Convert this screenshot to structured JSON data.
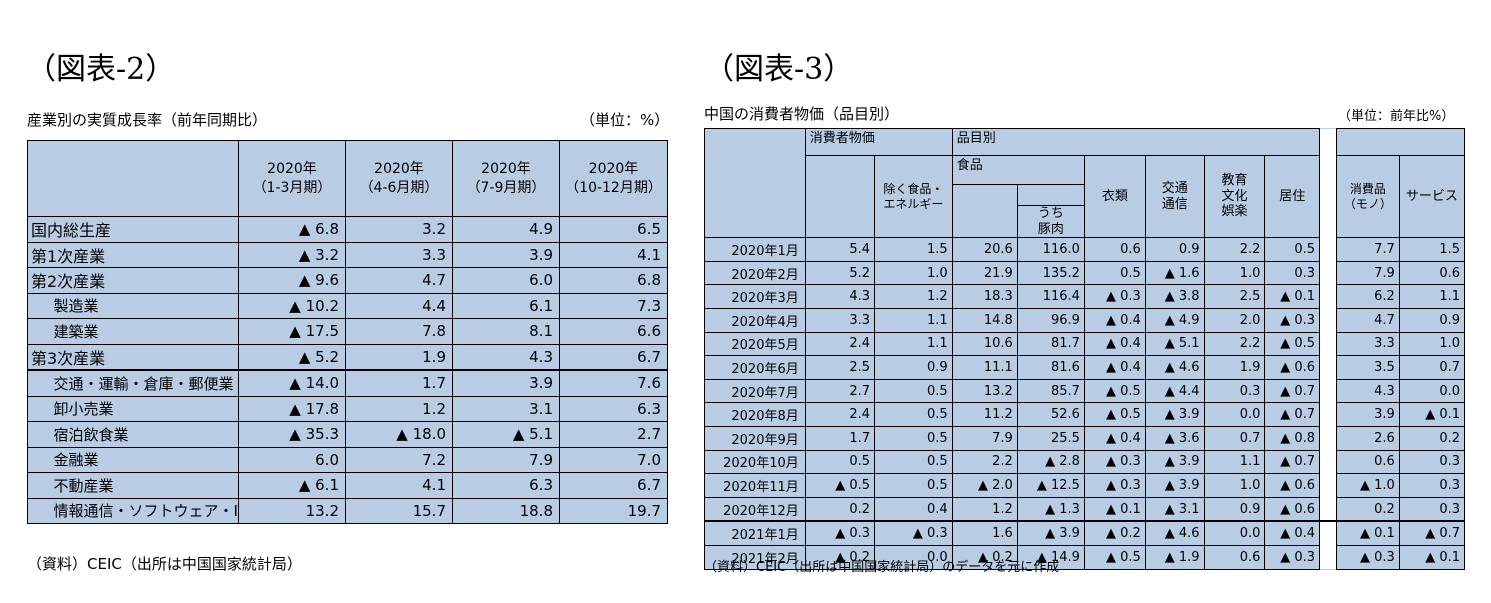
{
  "fig2": {
    "title": "（図表-2）",
    "subtitle": "産業別の実質成長率（前年同期比）",
    "unit": "（単位：%）",
    "columns": [
      "2020年\n（1-3月期）",
      "2020年\n（4-6月期）",
      "2020年\n（7-9月期）",
      "2020年\n（10-12月期）"
    ],
    "rows": [
      {
        "label": "国内総生産",
        "values": [
          "▲ 6.8",
          "3.2",
          "4.9",
          "6.5"
        ]
      },
      {
        "label": "第1次産業",
        "values": [
          "▲ 3.2",
          "3.3",
          "3.9",
          "4.1"
        ]
      },
      {
        "label": "第2次産業",
        "values": [
          "▲ 9.6",
          "4.7",
          "6.0",
          "6.8"
        ]
      },
      {
        "label": "製造業",
        "values": [
          "▲ 10.2",
          "4.4",
          "6.1",
          "7.3"
        ]
      },
      {
        "label": "建築業",
        "values": [
          "▲ 17.5",
          "7.8",
          "8.1",
          "6.6"
        ]
      },
      {
        "label": "第3次産業",
        "values": [
          "▲ 5.2",
          "1.9",
          "4.3",
          "6.7"
        ]
      },
      {
        "label": "交通・運輸・倉庫・郵便業",
        "values": [
          "▲ 14.0",
          "1.7",
          "3.9",
          "7.6"
        ]
      },
      {
        "label": "卸小売業",
        "values": [
          "▲ 17.8",
          "1.2",
          "3.1",
          "6.3"
        ]
      },
      {
        "label": "宿泊飲食業",
        "values": [
          "▲ 35.3",
          "▲ 18.0",
          "▲ 5.1",
          "2.7"
        ]
      },
      {
        "label": "金融業",
        "values": [
          "6.0",
          "7.2",
          "7.9",
          "7.0"
        ]
      },
      {
        "label": "不動産業",
        "values": [
          "▲ 6.1",
          "4.1",
          "6.3",
          "6.7"
        ]
      },
      {
        "label": "情報通信・ソフトウェア・IT",
        "values": [
          "13.2",
          "15.7",
          "18.8",
          "19.7"
        ]
      }
    ],
    "source": "（資料）CEIC（出所は中国国家統計局）"
  },
  "fig3": {
    "title": "（図表-3）",
    "subtitle": "中国の消費者物価（品目別）",
    "unit": "（単位：前年比%）",
    "headers": {
      "cpi": "消費者物価",
      "items": "品目別",
      "ex_food_energy": "除く食品・\nエネルギー",
      "food": "食品",
      "pork": "うち\n豚肉",
      "clothing": "衣類",
      "transport": "交通\n通信",
      "education": "教育\n文化\n娯楽",
      "housing": "居住",
      "goods": "消費品\n（モノ）",
      "services": "サービス"
    },
    "rows": [
      {
        "month": "2020年1月",
        "values": [
          "5.4",
          "1.5",
          "20.6",
          "116.0",
          "0.6",
          "0.9",
          "2.2",
          "0.5",
          "7.7",
          "1.5"
        ]
      },
      {
        "month": "2020年2月",
        "values": [
          "5.2",
          "1.0",
          "21.9",
          "135.2",
          "0.5",
          "▲ 1.6",
          "1.0",
          "0.3",
          "7.9",
          "0.6"
        ]
      },
      {
        "month": "2020年3月",
        "values": [
          "4.3",
          "1.2",
          "18.3",
          "116.4",
          "▲ 0.3",
          "▲ 3.8",
          "2.5",
          "▲ 0.1",
          "6.2",
          "1.1"
        ]
      },
      {
        "month": "2020年4月",
        "values": [
          "3.3",
          "1.1",
          "14.8",
          "96.9",
          "▲ 0.4",
          "▲ 4.9",
          "2.0",
          "▲ 0.3",
          "4.7",
          "0.9"
        ]
      },
      {
        "month": "2020年5月",
        "values": [
          "2.4",
          "1.1",
          "10.6",
          "81.7",
          "▲ 0.4",
          "▲ 5.1",
          "2.2",
          "▲ 0.5",
          "3.3",
          "1.0"
        ]
      },
      {
        "month": "2020年6月",
        "values": [
          "2.5",
          "0.9",
          "11.1",
          "81.6",
          "▲ 0.4",
          "▲ 4.6",
          "1.9",
          "▲ 0.6",
          "3.5",
          "0.7"
        ]
      },
      {
        "month": "2020年7月",
        "values": [
          "2.7",
          "0.5",
          "13.2",
          "85.7",
          "▲ 0.5",
          "▲ 4.4",
          "0.3",
          "▲ 0.7",
          "4.3",
          "0.0"
        ]
      },
      {
        "month": "2020年8月",
        "values": [
          "2.4",
          "0.5",
          "11.2",
          "52.6",
          "▲ 0.5",
          "▲ 3.9",
          "0.0",
          "▲ 0.7",
          "3.9",
          "▲ 0.1"
        ]
      },
      {
        "month": "2020年9月",
        "values": [
          "1.7",
          "0.5",
          "7.9",
          "25.5",
          "▲ 0.4",
          "▲ 3.6",
          "0.7",
          "▲ 0.8",
          "2.6",
          "0.2"
        ]
      },
      {
        "month": "2020年10月",
        "values": [
          "0.5",
          "0.5",
          "2.2",
          "▲ 2.8",
          "▲ 0.3",
          "▲ 3.9",
          "1.1",
          "▲ 0.7",
          "0.6",
          "0.3"
        ]
      },
      {
        "month": "2020年11月",
        "values": [
          "▲ 0.5",
          "0.5",
          "▲ 2.0",
          "▲ 12.5",
          "▲ 0.3",
          "▲ 3.9",
          "1.0",
          "▲ 0.6",
          "▲ 1.0",
          "0.3"
        ]
      },
      {
        "month": "2020年12月",
        "values": [
          "0.2",
          "0.4",
          "1.2",
          "▲ 1.3",
          "▲ 0.1",
          "▲ 3.1",
          "0.9",
          "▲ 0.6",
          "0.2",
          "0.3"
        ]
      },
      {
        "month": "2021年1月",
        "values": [
          "▲ 0.3",
          "▲ 0.3",
          "1.6",
          "▲ 3.9",
          "▲ 0.2",
          "▲ 4.6",
          "0.0",
          "▲ 0.4",
          "▲ 0.1",
          "▲ 0.7"
        ]
      },
      {
        "month": "2021年2月",
        "values": [
          "▲ 0.2",
          "0.0",
          "▲ 0.2",
          "▲ 14.9",
          "▲ 0.5",
          "▲ 1.9",
          "0.6",
          "▲ 0.3",
          "▲ 0.3",
          "▲ 0.1"
        ]
      }
    ],
    "source": "（資料）CEIC（出所は中国国家統計局）のデータを元に作成"
  }
}
